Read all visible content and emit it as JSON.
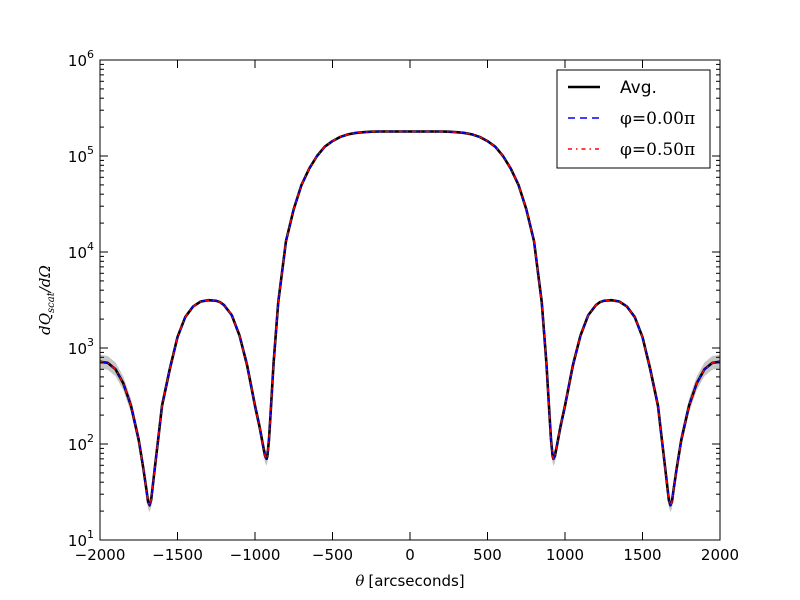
{
  "chart_data": {
    "type": "line",
    "title": "",
    "xlabel": "θ [arcseconds]",
    "xlabel_symbol": "θ",
    "xlabel_unit": "[arcseconds]",
    "ylabel": "dQ_scat/dΩ",
    "xlim": [
      -2000,
      2000
    ],
    "ylim": [
      10,
      1000000
    ],
    "yscale": "log",
    "grid": false,
    "legend_position": "top-right",
    "xticks": [
      -2000,
      -1500,
      -1000,
      -500,
      0,
      500,
      1000,
      1500,
      2000
    ],
    "xtick_labels": [
      "−2000",
      "−1500",
      "−1000",
      "−500",
      "0",
      "500",
      "1000",
      "1500",
      "2000"
    ],
    "yticks": [
      10,
      100,
      1000,
      10000,
      100000,
      1000000
    ],
    "ytick_exponents": [
      "1",
      "2",
      "3",
      "4",
      "5",
      "6"
    ],
    "ytick_base": "10",
    "x": [
      -2000,
      -1950,
      -1900,
      -1850,
      -1800,
      -1750,
      -1720,
      -1700,
      -1690,
      -1680,
      -1670,
      -1650,
      -1620,
      -1600,
      -1550,
      -1500,
      -1450,
      -1400,
      -1350,
      -1300,
      -1250,
      -1225,
      -1200,
      -1150,
      -1100,
      -1050,
      -1000,
      -970,
      -950,
      -935,
      -925,
      -920,
      -910,
      -900,
      -880,
      -850,
      -800,
      -750,
      -700,
      -650,
      -600,
      -550,
      -500,
      -450,
      -400,
      -350,
      -300,
      -250,
      -200,
      -150,
      -100,
      -50,
      0,
      50,
      100,
      150,
      200,
      250,
      300,
      350,
      400,
      450,
      500,
      550,
      600,
      650,
      700,
      750,
      800,
      850,
      880,
      900,
      910,
      920,
      925,
      935,
      950,
      970,
      1000,
      1050,
      1100,
      1150,
      1200,
      1225,
      1250,
      1300,
      1350,
      1400,
      1450,
      1500,
      1550,
      1600,
      1620,
      1650,
      1670,
      1680,
      1690,
      1700,
      1720,
      1750,
      1800,
      1850,
      1900,
      1950,
      2000
    ],
    "series": [
      {
        "name": "Avg.",
        "color": "#000000",
        "style": "solid",
        "values": [
          720,
          700,
          600,
          430,
          250,
          110,
          55,
          33,
          25,
          23,
          26,
          50,
          130,
          250,
          600,
          1300,
          2100,
          2700,
          3050,
          3150,
          3100,
          3000,
          2800,
          2200,
          1350,
          650,
          250,
          150,
          100,
          75,
          70,
          75,
          110,
          200,
          700,
          3000,
          13000,
          28000,
          50000,
          74000,
          100000,
          125000,
          143000,
          158000,
          168000,
          174000,
          177000,
          179000,
          180000,
          180000,
          180000,
          180000,
          180000,
          180000,
          180000,
          180000,
          180000,
          179000,
          177000,
          174000,
          168000,
          158000,
          143000,
          125000,
          100000,
          74000,
          50000,
          28000,
          13000,
          3000,
          700,
          200,
          110,
          75,
          70,
          75,
          100,
          150,
          250,
          650,
          1350,
          2200,
          2800,
          3000,
          3100,
          3150,
          3050,
          2700,
          2100,
          1300,
          600,
          250,
          130,
          50,
          26,
          23,
          25,
          33,
          55,
          110,
          250,
          430,
          600,
          700,
          720
        ]
      },
      {
        "name": "φ=0.00π",
        "color": "#0000ff",
        "style": "dashed",
        "values": [
          720,
          700,
          600,
          430,
          250,
          110,
          55,
          33,
          25,
          23,
          26,
          50,
          130,
          250,
          600,
          1300,
          2100,
          2700,
          3050,
          3150,
          3100,
          3000,
          2800,
          2200,
          1350,
          650,
          250,
          150,
          100,
          75,
          70,
          75,
          110,
          200,
          700,
          3000,
          13000,
          28000,
          50000,
          74000,
          100000,
          125000,
          143000,
          158000,
          168000,
          174000,
          177000,
          179000,
          180000,
          180000,
          180000,
          180000,
          180000,
          180000,
          180000,
          180000,
          180000,
          179000,
          177000,
          174000,
          168000,
          158000,
          143000,
          125000,
          100000,
          74000,
          50000,
          28000,
          13000,
          3000,
          700,
          200,
          110,
          75,
          70,
          75,
          100,
          150,
          250,
          650,
          1350,
          2200,
          2800,
          3000,
          3100,
          3150,
          3050,
          2700,
          2100,
          1300,
          600,
          250,
          130,
          50,
          26,
          23,
          25,
          33,
          55,
          110,
          250,
          430,
          600,
          700,
          720
        ]
      },
      {
        "name": "φ=0.50π",
        "color": "#ff0000",
        "style": "dashdot",
        "values": [
          720,
          700,
          600,
          430,
          250,
          110,
          55,
          33,
          25,
          23,
          26,
          50,
          130,
          250,
          600,
          1300,
          2100,
          2700,
          3050,
          3150,
          3100,
          3000,
          2800,
          2200,
          1350,
          650,
          250,
          150,
          100,
          75,
          70,
          75,
          110,
          200,
          700,
          3000,
          13000,
          28000,
          50000,
          74000,
          100000,
          125000,
          143000,
          158000,
          168000,
          174000,
          177000,
          179000,
          180000,
          180000,
          180000,
          180000,
          180000,
          180000,
          180000,
          180000,
          180000,
          179000,
          177000,
          174000,
          168000,
          158000,
          143000,
          125000,
          100000,
          74000,
          50000,
          28000,
          13000,
          3000,
          700,
          200,
          110,
          75,
          70,
          75,
          100,
          150,
          250,
          650,
          1350,
          2200,
          2800,
          3000,
          3100,
          3150,
          3050,
          2700,
          2100,
          1300,
          600,
          250,
          130,
          50,
          26,
          23,
          25,
          33,
          55,
          110,
          250,
          430,
          600,
          700,
          720
        ]
      }
    ],
    "legend": [
      {
        "label": "Avg.",
        "color": "#000000",
        "style": "solid"
      },
      {
        "label": "φ=0.00π",
        "color": "#0000ff",
        "style": "dashed"
      },
      {
        "label": "φ=0.50π",
        "color": "#ff0000",
        "style": "dashdot"
      }
    ],
    "band_color": "#999999"
  }
}
